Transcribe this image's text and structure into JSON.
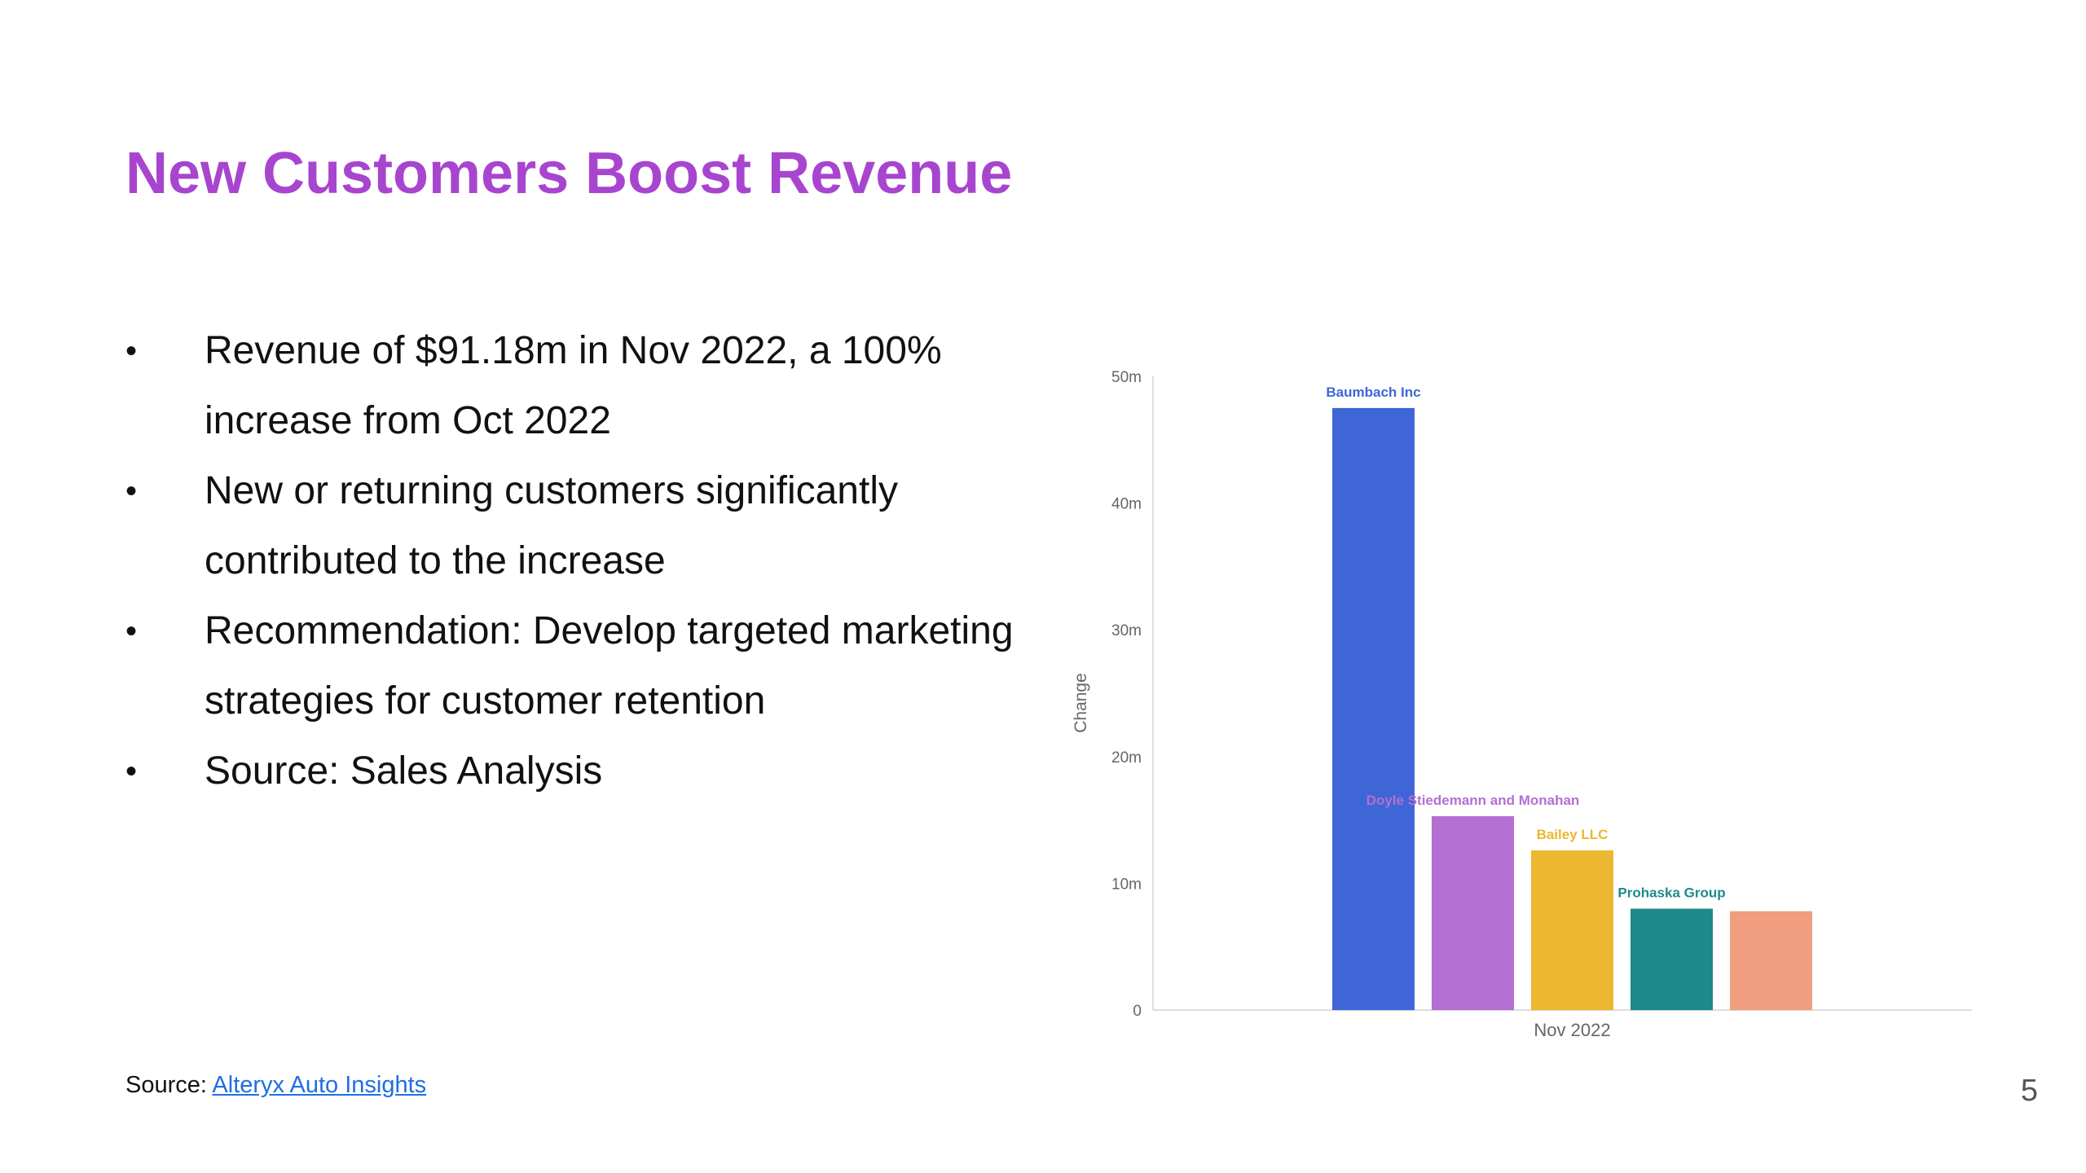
{
  "slide": {
    "title": "New Customers Boost Revenue",
    "bullets": [
      "Revenue of $91.18m in Nov 2022, a 100% increase from Oct 2022",
      "New or returning customers significantly contributed to the increase",
      "Recommendation: Develop targeted marketing strategies for customer retention",
      "Source: Sales Analysis"
    ],
    "bullet_symbol": "•",
    "source_label": "Source: ",
    "source_link": "Alteryx Auto Insights",
    "page_number": "5"
  },
  "colors": {
    "title": "#a845cf",
    "link": "#1f6fe0"
  },
  "chart_data": {
    "type": "bar",
    "categories": [
      "Nov 2022"
    ],
    "xlabel": "Nov 2022",
    "ylabel": "Change",
    "ylim": [
      0,
      50
    ],
    "yticks": [
      0,
      10,
      20,
      30,
      40,
      50
    ],
    "ytick_labels": [
      "0",
      "10m",
      "20m",
      "30m",
      "40m",
      "50m"
    ],
    "grid": false,
    "series": [
      {
        "name": "Baumbach Inc",
        "values": [
          47.5
        ],
        "color": "#3f66d6",
        "label_color": "#3f66d6"
      },
      {
        "name": "Doyle Stiedemann and Monahan",
        "values": [
          15.3
        ],
        "color": "#b46fd2",
        "label_color": "#b46fd2"
      },
      {
        "name": "Bailey LLC",
        "values": [
          12.6
        ],
        "color": "#ecb731",
        "label_color": "#ecb731"
      },
      {
        "name": "Prohaska Group",
        "values": [
          8.0
        ],
        "color": "#1f8a8a",
        "label_color": "#1f8a8a"
      },
      {
        "name": "",
        "values": [
          7.8
        ],
        "color": "#f09d80",
        "label_color": "#f09d80"
      }
    ]
  }
}
